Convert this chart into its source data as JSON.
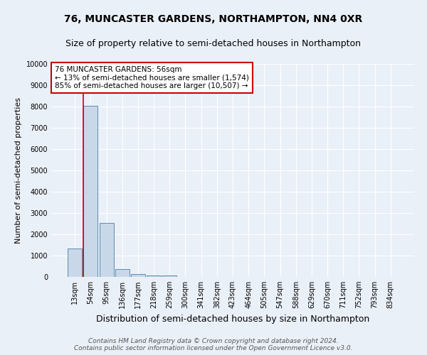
{
  "title": "76, MUNCASTER GARDENS, NORTHAMPTON, NN4 0XR",
  "subtitle": "Size of property relative to semi-detached houses in Northampton",
  "xlabel": "Distribution of semi-detached houses by size in Northampton",
  "ylabel": "Number of semi-detached properties",
  "footer_line1": "Contains HM Land Registry data © Crown copyright and database right 2024.",
  "footer_line2": "Contains public sector information licensed under the Open Government Licence v3.0.",
  "bin_labels": [
    "13sqm",
    "54sqm",
    "95sqm",
    "136sqm",
    "177sqm",
    "218sqm",
    "259sqm",
    "300sqm",
    "341sqm",
    "382sqm",
    "423sqm",
    "464sqm",
    "505sqm",
    "547sqm",
    "588sqm",
    "629sqm",
    "670sqm",
    "711sqm",
    "752sqm",
    "793sqm",
    "834sqm"
  ],
  "bar_values": [
    1330,
    8030,
    2540,
    380,
    125,
    80,
    55,
    0,
    0,
    0,
    0,
    0,
    0,
    0,
    0,
    0,
    0,
    0,
    0,
    0,
    0
  ],
  "bar_color": "#c8d8e8",
  "bar_edge_color": "#5b8db0",
  "vline_x_index": 1,
  "vline_color": "#cc0000",
  "annotation_title": "76 MUNCASTER GARDENS: 56sqm",
  "annotation_line1": "← 13% of semi-detached houses are smaller (1,574)",
  "annotation_line2": "85% of semi-detached houses are larger (10,507) →",
  "annotation_box_color": "white",
  "annotation_box_edge": "#cc0000",
  "ylim": [
    0,
    10000
  ],
  "yticks": [
    0,
    1000,
    2000,
    3000,
    4000,
    5000,
    6000,
    7000,
    8000,
    9000,
    10000
  ],
  "bg_color": "#eaf0f8",
  "grid_color": "white",
  "title_fontsize": 10,
  "subtitle_fontsize": 9,
  "xlabel_fontsize": 9,
  "ylabel_fontsize": 8,
  "tick_fontsize": 7,
  "annotation_fontsize": 7.5,
  "footer_fontsize": 6.5
}
